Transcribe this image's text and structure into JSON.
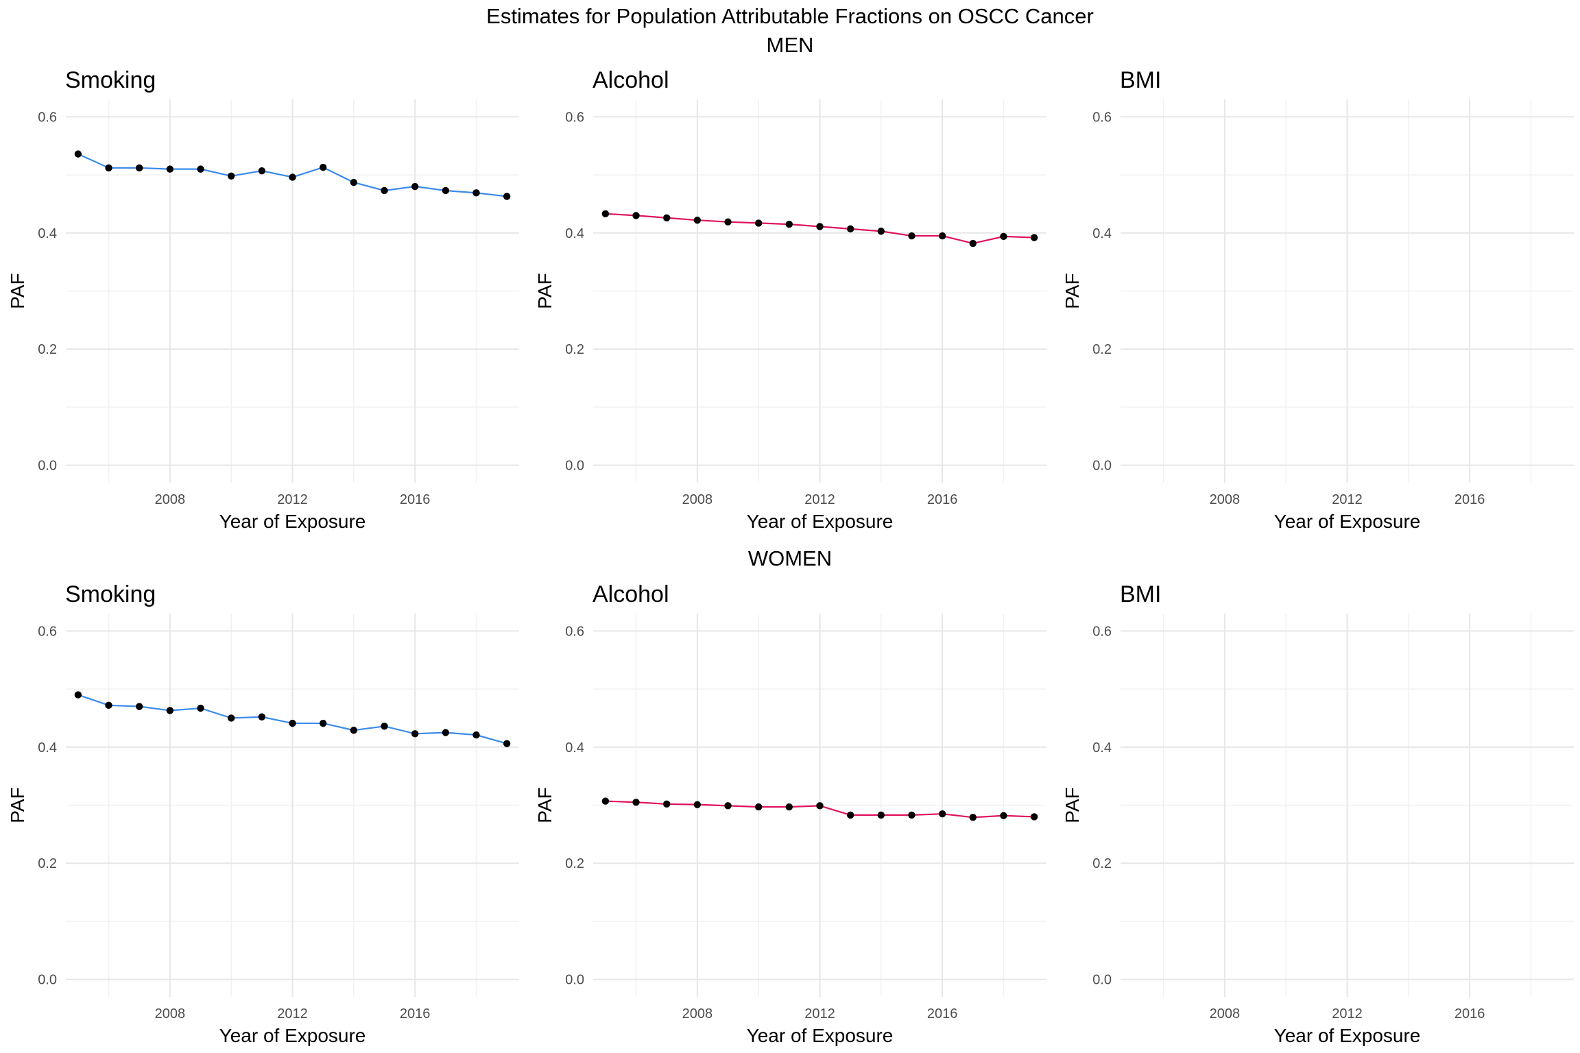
{
  "figure": {
    "title": "Estimates for Population Attributable Fractions on OSCC Cancer",
    "rows": [
      "MEN",
      "WOMEN"
    ]
  },
  "chart_data": [
    {
      "type": "line",
      "group": "MEN",
      "title": "Smoking",
      "xlabel": "Year of Exposure",
      "ylabel": "PAF",
      "xlim": [
        2004.6,
        2019.4
      ],
      "ylim": [
        -0.03,
        0.63
      ],
      "xticks": [
        "2008",
        "2012",
        "2016"
      ],
      "yticks": [
        "0.0",
        "0.2",
        "0.4",
        "0.6"
      ],
      "grid": true,
      "line_color": "#3b8beb",
      "point_color": "#000000",
      "x": [
        2005,
        2006,
        2007,
        2008,
        2009,
        2010,
        2011,
        2012,
        2013,
        2014,
        2015,
        2016,
        2017,
        2018,
        2019
      ],
      "values": [
        0.536,
        0.512,
        0.512,
        0.51,
        0.51,
        0.498,
        0.507,
        0.496,
        0.513,
        0.487,
        0.473,
        0.48,
        0.473,
        0.469,
        0.463
      ]
    },
    {
      "type": "line",
      "group": "MEN",
      "title": "Alcohol",
      "xlabel": "Year of Exposure",
      "ylabel": "PAF",
      "xlim": [
        2004.6,
        2019.4
      ],
      "ylim": [
        -0.03,
        0.63
      ],
      "xticks": [
        "2008",
        "2012",
        "2016"
      ],
      "yticks": [
        "0.0",
        "0.2",
        "0.4",
        "0.6"
      ],
      "grid": true,
      "line_color": "#e0115f",
      "point_color": "#000000",
      "x": [
        2005,
        2006,
        2007,
        2008,
        2009,
        2010,
        2011,
        2012,
        2013,
        2014,
        2015,
        2016,
        2017,
        2018,
        2019
      ],
      "values": [
        0.433,
        0.43,
        0.426,
        0.422,
        0.419,
        0.417,
        0.415,
        0.411,
        0.407,
        0.403,
        0.395,
        0.395,
        0.382,
        0.394,
        0.392
      ]
    },
    {
      "type": "line",
      "group": "MEN",
      "title": "BMI",
      "xlabel": "Year of Exposure",
      "ylabel": "PAF",
      "xlim": [
        2004.6,
        2019.4
      ],
      "ylim": [
        -0.03,
        0.63
      ],
      "xticks": [
        "2008",
        "2012",
        "2016"
      ],
      "yticks": [
        "0.0",
        "0.2",
        "0.4",
        "0.6"
      ],
      "grid": true,
      "line_color": "#3b8beb",
      "point_color": "#000000",
      "x": [],
      "values": []
    },
    {
      "type": "line",
      "group": "WOMEN",
      "title": "Smoking",
      "xlabel": "Year of Exposure",
      "ylabel": "PAF",
      "xlim": [
        2004.6,
        2019.4
      ],
      "ylim": [
        -0.03,
        0.63
      ],
      "xticks": [
        "2008",
        "2012",
        "2016"
      ],
      "yticks": [
        "0.0",
        "0.2",
        "0.4",
        "0.6"
      ],
      "grid": true,
      "line_color": "#3b8beb",
      "point_color": "#000000",
      "x": [
        2005,
        2006,
        2007,
        2008,
        2009,
        2010,
        2011,
        2012,
        2013,
        2014,
        2015,
        2016,
        2017,
        2018,
        2019
      ],
      "values": [
        0.49,
        0.472,
        0.47,
        0.463,
        0.467,
        0.45,
        0.452,
        0.441,
        0.441,
        0.429,
        0.436,
        0.423,
        0.425,
        0.421,
        0.406
      ]
    },
    {
      "type": "line",
      "group": "WOMEN",
      "title": "Alcohol",
      "xlabel": "Year of Exposure",
      "ylabel": "PAF",
      "xlim": [
        2004.6,
        2019.4
      ],
      "ylim": [
        -0.03,
        0.63
      ],
      "xticks": [
        "2008",
        "2012",
        "2016"
      ],
      "yticks": [
        "0.0",
        "0.2",
        "0.4",
        "0.6"
      ],
      "grid": true,
      "line_color": "#e0115f",
      "point_color": "#000000",
      "x": [
        2005,
        2006,
        2007,
        2008,
        2009,
        2010,
        2011,
        2012,
        2013,
        2014,
        2015,
        2016,
        2017,
        2018,
        2019
      ],
      "values": [
        0.307,
        0.305,
        0.302,
        0.301,
        0.299,
        0.297,
        0.297,
        0.299,
        0.283,
        0.283,
        0.283,
        0.285,
        0.279,
        0.282,
        0.28
      ]
    },
    {
      "type": "line",
      "group": "WOMEN",
      "title": "BMI",
      "xlabel": "Year of Exposure",
      "ylabel": "PAF",
      "xlim": [
        2004.6,
        2019.4
      ],
      "ylim": [
        -0.03,
        0.63
      ],
      "xticks": [
        "2008",
        "2012",
        "2016"
      ],
      "yticks": [
        "0.0",
        "0.2",
        "0.4",
        "0.6"
      ],
      "grid": true,
      "line_color": "#3b8beb",
      "point_color": "#000000",
      "x": [],
      "values": []
    }
  ]
}
